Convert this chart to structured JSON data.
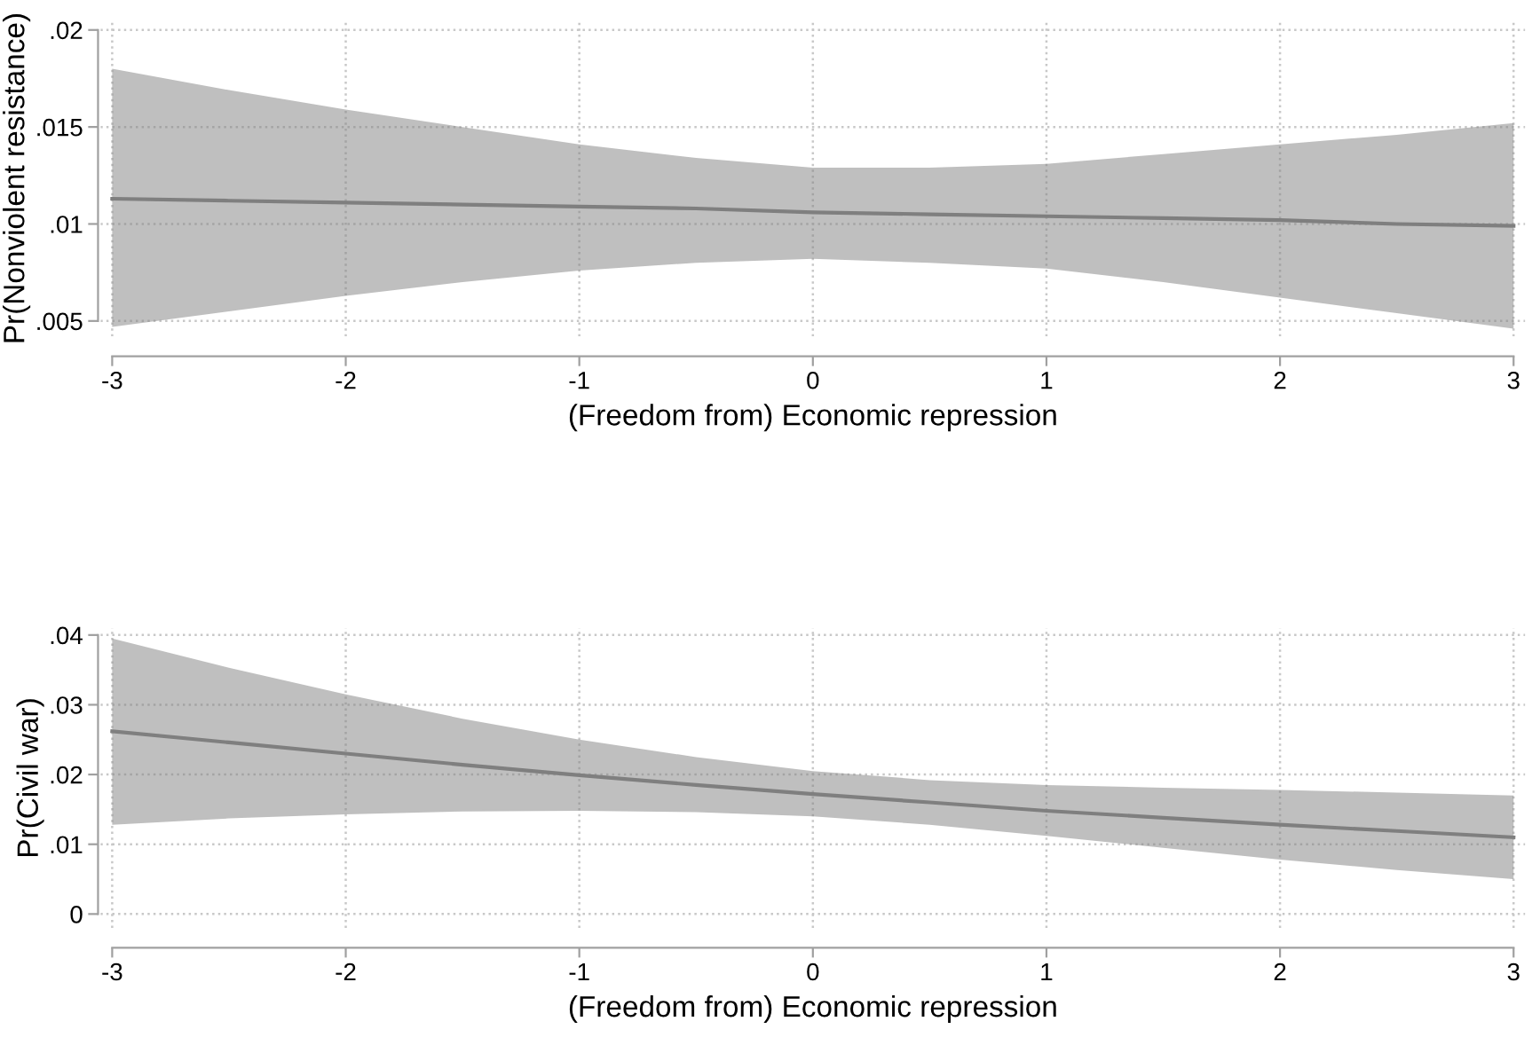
{
  "chart_data": [
    {
      "type": "line",
      "xlabel": "(Freedom from) Economic repression",
      "ylabel": "Pr(Nonviolent resistance)",
      "x": [
        -3,
        -2.5,
        -2,
        -1.5,
        -1,
        -0.5,
        0,
        0.5,
        1,
        1.5,
        2,
        2.5,
        3
      ],
      "xlim": [
        -3.05,
        3.05
      ],
      "xticks": [
        -3,
        -2,
        -1,
        0,
        1,
        2,
        3
      ],
      "ylim": [
        0.0042,
        0.0205
      ],
      "yticks": [
        {
          "value": 0.005,
          "label": ".005"
        },
        {
          "value": 0.01,
          "label": ".01"
        },
        {
          "value": 0.015,
          "label": ".015"
        },
        {
          "value": 0.02,
          "label": ".02"
        }
      ],
      "grid": true,
      "line_style": "solid",
      "series": [
        {
          "color": "#7f7f7f",
          "values": [
            0.0113,
            0.0112,
            0.0111,
            0.011,
            0.0109,
            0.0108,
            0.0106,
            0.0105,
            0.0104,
            0.0103,
            0.0102,
            0.01,
            0.0099
          ],
          "upper": [
            0.018,
            0.0169,
            0.0159,
            0.015,
            0.0141,
            0.0134,
            0.0129,
            0.0129,
            0.0131,
            0.0136,
            0.0141,
            0.0146,
            0.0152
          ],
          "lower": [
            0.0047,
            0.0055,
            0.0063,
            0.007,
            0.0076,
            0.008,
            0.0082,
            0.008,
            0.0077,
            0.007,
            0.0062,
            0.0054,
            0.0046
          ]
        }
      ]
    },
    {
      "type": "line",
      "xlabel": "(Freedom from) Economic repression",
      "ylabel": "Pr(Civil war)",
      "x": [
        -3,
        -2.5,
        -2,
        -1.5,
        -1,
        -0.5,
        0,
        0.5,
        1,
        1.5,
        2,
        2.5,
        3
      ],
      "xlim": [
        -3.05,
        3.05
      ],
      "xticks": [
        -3,
        -2,
        -1,
        0,
        1,
        2,
        3
      ],
      "ylim": [
        -0.002,
        0.041
      ],
      "yticks": [
        0,
        {
          "value": 0.01,
          "label": ".01"
        },
        {
          "value": 0.02,
          "label": ".02"
        },
        {
          "value": 0.03,
          "label": ".03"
        },
        {
          "value": 0.04,
          "label": ".04"
        }
      ],
      "grid": true,
      "line_style": "solid",
      "series": [
        {
          "color": "#7f7f7f",
          "values": [
            0.0262,
            0.0246,
            0.023,
            0.0214,
            0.0199,
            0.0185,
            0.0172,
            0.016,
            0.0148,
            0.0138,
            0.0128,
            0.0119,
            0.011
          ],
          "upper": [
            0.0395,
            0.0353,
            0.0315,
            0.028,
            0.025,
            0.0225,
            0.0205,
            0.0192,
            0.0185,
            0.0181,
            0.0178,
            0.0174,
            0.017
          ],
          "lower": [
            0.0128,
            0.0137,
            0.0143,
            0.0147,
            0.0148,
            0.0146,
            0.014,
            0.0128,
            0.0112,
            0.0095,
            0.0078,
            0.0063,
            0.005
          ]
        }
      ]
    }
  ]
}
